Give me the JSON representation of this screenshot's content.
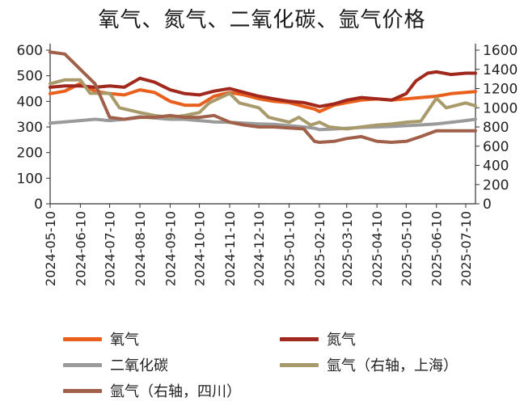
{
  "chart_data": {
    "type": "line",
    "title": "氧气、氮气、二氧化碳、氩气价格",
    "x_tick_labels": [
      "2024-05-10",
      "2024-06-10",
      "2024-07-10",
      "2024-08-10",
      "2024-09-10",
      "2024-10-10",
      "2024-11-10",
      "2024-12-10",
      "2025-01-10",
      "2025-02-10",
      "2025-03-10",
      "2025-04-10",
      "2025-05-10",
      "2025-06-10",
      "2025-07-10"
    ],
    "x_range": [
      "2024-05-10",
      "2025-07-20"
    ],
    "y_left": {
      "min": 0,
      "max": 600,
      "ticks": [
        0,
        100,
        200,
        300,
        400,
        500,
        600
      ]
    },
    "y_right": {
      "min": 0,
      "max": 1600,
      "ticks": [
        0,
        200,
        400,
        600,
        800,
        1000,
        1200,
        1400,
        1600
      ]
    },
    "grid": false,
    "legend_position": "bottom",
    "series": [
      {
        "name": "氧气",
        "axis": "left",
        "color": "#e8601c",
        "points": [
          [
            "2024-05-10",
            430
          ],
          [
            "2024-05-25",
            440
          ],
          [
            "2024-06-10",
            470
          ],
          [
            "2024-06-25",
            440
          ],
          [
            "2024-07-10",
            430
          ],
          [
            "2024-07-25",
            425
          ],
          [
            "2024-08-10",
            445
          ],
          [
            "2024-08-25",
            435
          ],
          [
            "2024-09-10",
            400
          ],
          [
            "2024-09-25",
            385
          ],
          [
            "2024-10-10",
            385
          ],
          [
            "2024-10-25",
            420
          ],
          [
            "2024-11-10",
            435
          ],
          [
            "2024-11-25",
            425
          ],
          [
            "2024-12-10",
            410
          ],
          [
            "2024-12-25",
            400
          ],
          [
            "2025-01-10",
            395
          ],
          [
            "2025-01-25",
            380
          ],
          [
            "2025-02-05",
            370
          ],
          [
            "2025-02-10",
            360
          ],
          [
            "2025-02-25",
            385
          ],
          [
            "2025-03-10",
            395
          ],
          [
            "2025-03-25",
            405
          ],
          [
            "2025-04-10",
            410
          ],
          [
            "2025-04-25",
            405
          ],
          [
            "2025-05-10",
            410
          ],
          [
            "2025-05-25",
            415
          ],
          [
            "2025-06-10",
            420
          ],
          [
            "2025-06-25",
            430
          ],
          [
            "2025-07-10",
            435
          ],
          [
            "2025-07-20",
            438
          ]
        ]
      },
      {
        "name": "氮气",
        "axis": "left",
        "color": "#a0281c",
        "points": [
          [
            "2024-05-10",
            455
          ],
          [
            "2024-05-25",
            460
          ],
          [
            "2024-06-10",
            460
          ],
          [
            "2024-06-25",
            455
          ],
          [
            "2024-07-10",
            460
          ],
          [
            "2024-07-25",
            455
          ],
          [
            "2024-08-10",
            490
          ],
          [
            "2024-08-25",
            475
          ],
          [
            "2024-09-10",
            445
          ],
          [
            "2024-09-25",
            430
          ],
          [
            "2024-10-10",
            425
          ],
          [
            "2024-10-25",
            440
          ],
          [
            "2024-11-10",
            450
          ],
          [
            "2024-11-25",
            435
          ],
          [
            "2024-12-10",
            420
          ],
          [
            "2024-12-25",
            410
          ],
          [
            "2025-01-10",
            400
          ],
          [
            "2025-01-25",
            395
          ],
          [
            "2025-02-05",
            385
          ],
          [
            "2025-02-10",
            380
          ],
          [
            "2025-02-25",
            390
          ],
          [
            "2025-03-10",
            405
          ],
          [
            "2025-03-25",
            415
          ],
          [
            "2025-04-10",
            410
          ],
          [
            "2025-04-25",
            405
          ],
          [
            "2025-05-10",
            430
          ],
          [
            "2025-05-20",
            480
          ],
          [
            "2025-06-01",
            510
          ],
          [
            "2025-06-10",
            515
          ],
          [
            "2025-06-25",
            505
          ],
          [
            "2025-07-10",
            510
          ],
          [
            "2025-07-20",
            510
          ]
        ]
      },
      {
        "name": "二氧化碳",
        "axis": "left",
        "color": "#9a9a9a",
        "points": [
          [
            "2024-05-10",
            315
          ],
          [
            "2024-05-25",
            320
          ],
          [
            "2024-06-10",
            325
          ],
          [
            "2024-06-25",
            330
          ],
          [
            "2024-07-10",
            325
          ],
          [
            "2024-07-25",
            330
          ],
          [
            "2024-08-10",
            340
          ],
          [
            "2024-08-25",
            335
          ],
          [
            "2024-09-10",
            330
          ],
          [
            "2024-09-25",
            330
          ],
          [
            "2024-10-10",
            325
          ],
          [
            "2024-10-25",
            320
          ],
          [
            "2024-11-10",
            318
          ],
          [
            "2024-11-25",
            315
          ],
          [
            "2024-12-10",
            312
          ],
          [
            "2024-12-25",
            310
          ],
          [
            "2025-01-10",
            305
          ],
          [
            "2025-01-25",
            300
          ],
          [
            "2025-02-05",
            295
          ],
          [
            "2025-02-10",
            290
          ],
          [
            "2025-02-25",
            292
          ],
          [
            "2025-03-10",
            295
          ],
          [
            "2025-03-25",
            298
          ],
          [
            "2025-04-10",
            300
          ],
          [
            "2025-04-25",
            302
          ],
          [
            "2025-05-10",
            305
          ],
          [
            "2025-05-25",
            308
          ],
          [
            "2025-06-10",
            312
          ],
          [
            "2025-06-25",
            318
          ],
          [
            "2025-07-10",
            325
          ],
          [
            "2025-07-20",
            330
          ]
        ]
      },
      {
        "name": "氩气（右轴，上海）",
        "axis": "right",
        "color": "#a89a6a",
        "points": [
          [
            "2024-05-10",
            1250
          ],
          [
            "2024-05-25",
            1290
          ],
          [
            "2024-06-10",
            1290
          ],
          [
            "2024-06-20",
            1150
          ],
          [
            "2024-07-10",
            1150
          ],
          [
            "2024-07-20",
            1000
          ],
          [
            "2024-08-10",
            950
          ],
          [
            "2024-08-25",
            920
          ],
          [
            "2024-09-10",
            900
          ],
          [
            "2024-09-25",
            920
          ],
          [
            "2024-10-10",
            950
          ],
          [
            "2024-10-20",
            1050
          ],
          [
            "2024-11-10",
            1150
          ],
          [
            "2024-11-20",
            1050
          ],
          [
            "2024-12-10",
            1000
          ],
          [
            "2024-12-20",
            900
          ],
          [
            "2025-01-10",
            850
          ],
          [
            "2025-01-20",
            900
          ],
          [
            "2025-02-01",
            820
          ],
          [
            "2025-02-10",
            850
          ],
          [
            "2025-02-20",
            800
          ],
          [
            "2025-03-10",
            780
          ],
          [
            "2025-03-25",
            800
          ],
          [
            "2025-04-10",
            820
          ],
          [
            "2025-04-25",
            830
          ],
          [
            "2025-05-10",
            850
          ],
          [
            "2025-05-25",
            860
          ],
          [
            "2025-06-10",
            1100
          ],
          [
            "2025-06-20",
            1000
          ],
          [
            "2025-07-10",
            1050
          ],
          [
            "2025-07-20",
            1020
          ]
        ]
      },
      {
        "name": "氩气（右轴，四川）",
        "axis": "right",
        "color": "#a0604a",
        "points": [
          [
            "2024-05-10",
            1580
          ],
          [
            "2024-05-25",
            1560
          ],
          [
            "2024-06-10",
            1400
          ],
          [
            "2024-06-25",
            1250
          ],
          [
            "2024-07-10",
            900
          ],
          [
            "2024-07-25",
            880
          ],
          [
            "2024-08-10",
            900
          ],
          [
            "2024-08-25",
            900
          ],
          [
            "2024-09-10",
            920
          ],
          [
            "2024-09-25",
            900
          ],
          [
            "2024-10-10",
            900
          ],
          [
            "2024-10-25",
            920
          ],
          [
            "2024-11-10",
            850
          ],
          [
            "2024-11-25",
            820
          ],
          [
            "2024-12-10",
            800
          ],
          [
            "2024-12-25",
            800
          ],
          [
            "2025-01-10",
            790
          ],
          [
            "2025-01-25",
            780
          ],
          [
            "2025-02-05",
            650
          ],
          [
            "2025-02-10",
            640
          ],
          [
            "2025-02-25",
            650
          ],
          [
            "2025-03-10",
            680
          ],
          [
            "2025-03-25",
            700
          ],
          [
            "2025-04-10",
            650
          ],
          [
            "2025-04-25",
            640
          ],
          [
            "2025-05-10",
            650
          ],
          [
            "2025-05-25",
            700
          ],
          [
            "2025-06-10",
            760
          ],
          [
            "2025-06-25",
            760
          ],
          [
            "2025-07-10",
            760
          ],
          [
            "2025-07-20",
            760
          ]
        ]
      }
    ]
  }
}
